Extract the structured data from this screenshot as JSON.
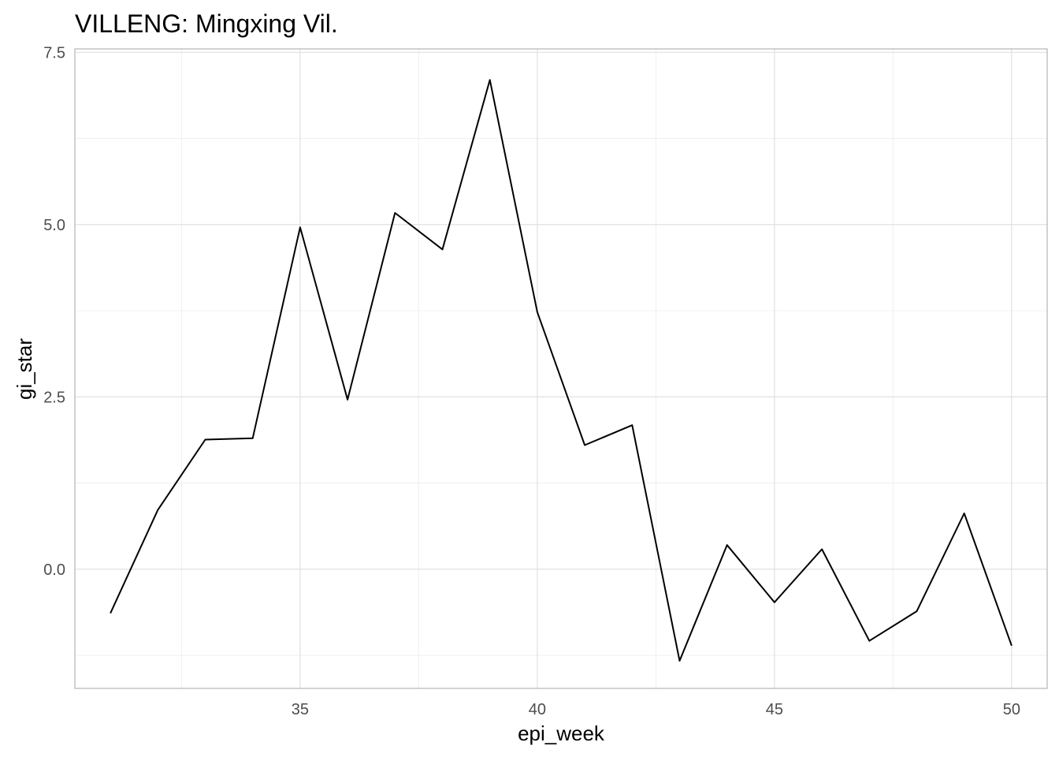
{
  "chart_data": {
    "type": "line",
    "title": "VILLENG: Mingxing Vil.",
    "xlabel": "epi_week",
    "ylabel": "gi_star",
    "xlim": [
      30.25,
      50.75
    ],
    "ylim": [
      -1.73,
      7.55
    ],
    "x_ticks": [
      35,
      40,
      45,
      50
    ],
    "x_tick_labels": [
      "35",
      "40",
      "45",
      "50"
    ],
    "y_ticks": [
      0,
      2.5,
      5,
      7.5
    ],
    "y_tick_labels": [
      "0.0",
      "2.5",
      "5.0",
      "7.5"
    ],
    "grid": true,
    "legend": "none",
    "series": [
      {
        "color": "#000000",
        "x": [
          31,
          32,
          33,
          34,
          35,
          36,
          37,
          38,
          39,
          40,
          41,
          42,
          43,
          44,
          45,
          46,
          47,
          48,
          49,
          50
        ],
        "y": [
          -0.64,
          0.86,
          1.88,
          1.9,
          4.96,
          2.46,
          5.17,
          4.64,
          7.1,
          3.73,
          1.8,
          2.09,
          -1.33,
          0.35,
          -0.48,
          0.29,
          -1.04,
          -0.61,
          0.81,
          -1.11
        ]
      }
    ]
  }
}
